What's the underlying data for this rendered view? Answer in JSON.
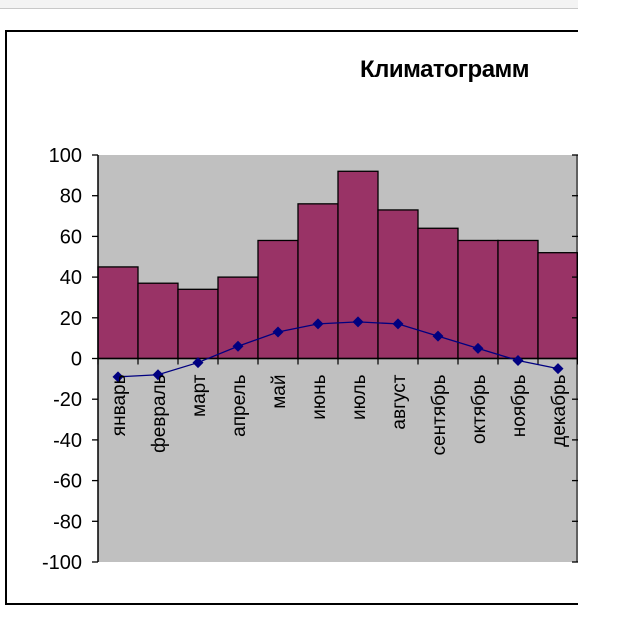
{
  "chart_data": {
    "type": "bar",
    "title": "Климатограмм",
    "categories": [
      "январь",
      "февраль",
      "март",
      "апрель",
      "май",
      "июнь",
      "июль",
      "август",
      "сентябрь",
      "октябрь",
      "ноябрь",
      "декабрь"
    ],
    "series": [
      {
        "type": "bar",
        "values": [
          45,
          37,
          34,
          40,
          58,
          76,
          92,
          73,
          64,
          58,
          58,
          52
        ]
      },
      {
        "type": "line",
        "values": [
          -9,
          -8,
          -2,
          6,
          13,
          17,
          18,
          17,
          11,
          5,
          -1,
          -5
        ]
      }
    ],
    "ylim": [
      -100,
      100
    ],
    "yticks": [
      100,
      80,
      60,
      40,
      20,
      0,
      -20,
      -40,
      -60,
      -80,
      -100
    ],
    "colors": {
      "bar": "#993366",
      "line": "#000080",
      "plot_bg": "#c0c0c0"
    }
  }
}
